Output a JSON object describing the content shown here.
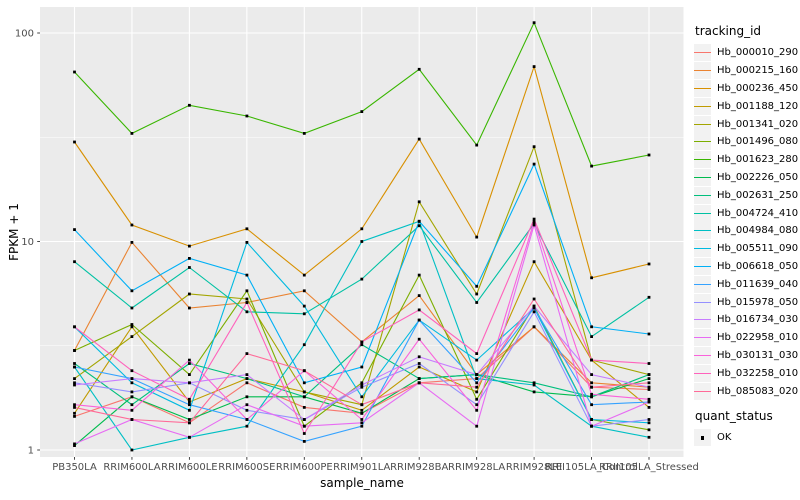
{
  "chart_data": {
    "type": "line",
    "title": "",
    "xlabel": "sample_name",
    "ylabel": "FPKM + 1",
    "y_scale": "log10",
    "ylim": [
      1,
      130
    ],
    "yticks": [
      1,
      10,
      100
    ],
    "grid": true,
    "panel_bg": "#EBEBEB",
    "point_color": "#000000",
    "point_shape": "square",
    "categories": [
      "PB350LA",
      "RRIM600LA",
      "RRIM600LE",
      "RRIM600SE",
      "RRIM600PE",
      "RRIM901LA",
      "RRIM928BA",
      "RRIM928LA",
      "RRIM928LE",
      "RRII105LA_Control",
      "RRII105LA_Stressed"
    ],
    "legend": {
      "title": "tracking_id",
      "position": "right"
    },
    "quant_status_legend": {
      "title": "quant_status",
      "items": [
        {
          "label": "OK",
          "marker": "black-square"
        }
      ]
    },
    "series": [
      {
        "name": "Hb_000010_290",
        "color": "#F8766D",
        "values": [
          1.45,
          1.8,
          1.35,
          2.1,
          1.6,
          1.5,
          2.1,
          2.2,
          3.9,
          2.0,
          1.95
        ]
      },
      {
        "name": "Hb_000215_160",
        "color": "#EA8331",
        "values": [
          3.0,
          9.9,
          4.8,
          5.1,
          5.8,
          3.3,
          5.5,
          2.3,
          3.9,
          2.1,
          2.0
        ]
      },
      {
        "name": "Hb_000236_450",
        "color": "#D89000",
        "values": [
          30,
          12,
          9.5,
          11.5,
          6.9,
          11.5,
          31,
          10.5,
          69,
          6.7,
          7.8
        ]
      },
      {
        "name": "Hb_001188_120",
        "color": "#C09B00",
        "values": [
          1.5,
          3.9,
          1.7,
          2.2,
          1.9,
          1.55,
          2.5,
          1.9,
          8.0,
          2.7,
          1.6
        ]
      },
      {
        "name": "Hb_001341_020",
        "color": "#A3A500",
        "values": [
          2.2,
          3.5,
          5.6,
          5.3,
          1.9,
          1.65,
          15.5,
          5.6,
          28.5,
          2.7,
          2.3
        ]
      },
      {
        "name": "Hb_001496_080",
        "color": "#7CAE00",
        "values": [
          3.0,
          4.0,
          2.3,
          5.8,
          1.3,
          2.1,
          6.9,
          1.75,
          4.9,
          1.4,
          1.25
        ]
      },
      {
        "name": "Hb_001623_280",
        "color": "#39B600",
        "values": [
          65,
          33,
          45,
          40,
          33,
          42,
          67,
          29,
          112,
          23,
          26
        ]
      },
      {
        "name": "Hb_002226_050",
        "color": "#00BB4E",
        "values": [
          1.05,
          1.8,
          1.4,
          1.8,
          1.8,
          1.5,
          2.2,
          2.3,
          1.9,
          1.8,
          2.2
        ]
      },
      {
        "name": "Hb_002631_250",
        "color": "#00BF7D",
        "values": [
          2.6,
          1.65,
          2.6,
          2.2,
          1.8,
          3.2,
          2.2,
          2.3,
          2.1,
          1.8,
          2.3
        ]
      },
      {
        "name": "Hb_004724_410",
        "color": "#00C1A3",
        "values": [
          8.0,
          4.8,
          7.5,
          4.6,
          4.5,
          6.6,
          11.9,
          5.1,
          12.2,
          3.5,
          5.4
        ]
      },
      {
        "name": "Hb_004984_080",
        "color": "#00BFC4",
        "values": [
          2.5,
          1.0,
          1.15,
          1.3,
          3.2,
          10.0,
          12.5,
          2.2,
          2.05,
          1.3,
          1.15
        ]
      },
      {
        "name": "Hb_005511_090",
        "color": "#00BAE0",
        "values": [
          3.9,
          2.1,
          1.55,
          9.9,
          4.9,
          1.8,
          4.2,
          2.7,
          4.8,
          1.4,
          1.35
        ]
      },
      {
        "name": "Hb_006618_050",
        "color": "#00B0F6",
        "values": [
          11.4,
          5.8,
          8.3,
          6.9,
          2.1,
          2.5,
          12.5,
          6.1,
          23.5,
          3.9,
          3.6
        ]
      },
      {
        "name": "Hb_011639_040",
        "color": "#35A2FF",
        "values": [
          2.5,
          2.2,
          1.65,
          1.4,
          1.1,
          1.3,
          4.2,
          2.1,
          4.8,
          1.65,
          1.7
        ]
      },
      {
        "name": "Hb_015978_050",
        "color": "#9590FF",
        "values": [
          2.1,
          1.9,
          2.1,
          1.55,
          1.4,
          2.0,
          2.6,
          1.65,
          4.6,
          1.3,
          1.4
        ]
      },
      {
        "name": "Hb_016734_030",
        "color": "#C77CFF",
        "values": [
          2.05,
          2.2,
          2.1,
          2.3,
          1.4,
          2.05,
          2.8,
          2.3,
          4.9,
          2.3,
          2.0
        ]
      },
      {
        "name": "Hb_022958_010",
        "color": "#E76BF3",
        "values": [
          1.07,
          1.4,
          1.15,
          1.65,
          1.3,
          1.35,
          2.1,
          1.3,
          12.0,
          1.3,
          1.7
        ]
      },
      {
        "name": "Hb_030131_030",
        "color": "#FA62DB",
        "values": [
          1.65,
          1.55,
          2.7,
          1.4,
          2.4,
          1.4,
          3.4,
          1.55,
          12.5,
          1.85,
          1.75
        ]
      },
      {
        "name": "Hb_032258_010",
        "color": "#FF62BC",
        "values": [
          3.9,
          2.4,
          1.75,
          5.1,
          1.2,
          3.3,
          4.7,
          2.9,
          12.8,
          2.7,
          2.6
        ]
      },
      {
        "name": "Hb_085083_020",
        "color": "#FF6A98",
        "values": [
          1.6,
          1.4,
          1.35,
          2.9,
          2.4,
          1.65,
          2.1,
          2.0,
          5.3,
          2.0,
          2.1
        ]
      }
    ]
  }
}
